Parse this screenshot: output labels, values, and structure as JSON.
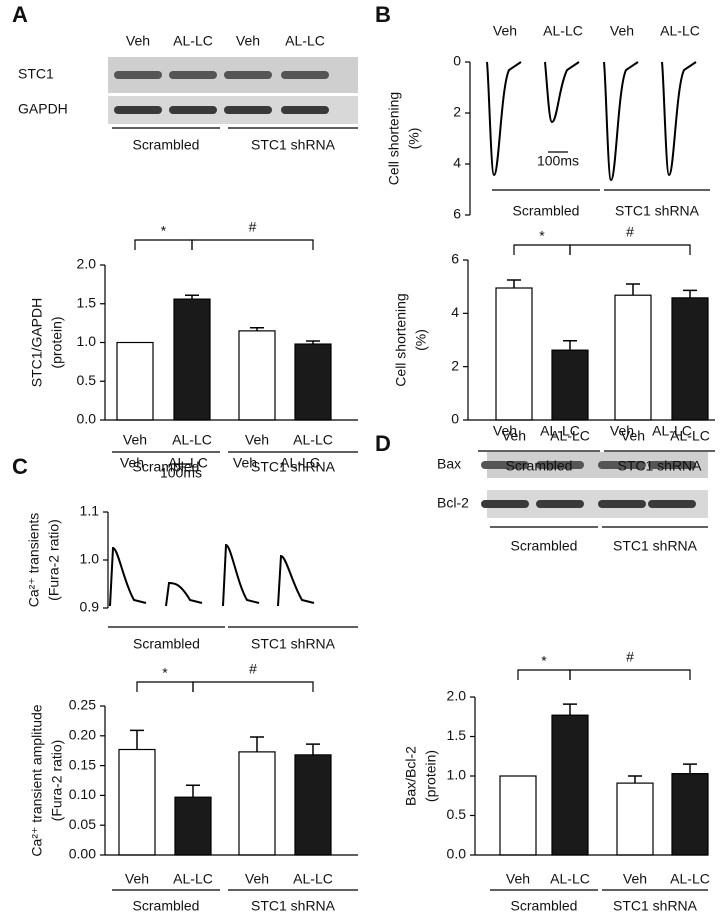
{
  "panels": [
    {
      "letter": "A",
      "lanes": [
        "Veh",
        "AL-LC",
        "Veh",
        "AL-LC"
      ],
      "blots": [
        "STC1",
        "GAPDH"
      ],
      "groups": [
        "Scrambled",
        "STC1 shRNA"
      ]
    },
    {
      "letter": "B",
      "lanes": [
        "Veh",
        "AL-LC",
        "Veh",
        "AL-LC"
      ],
      "trace": {
        "ylabel": [
          "Cell shortening",
          "(%)"
        ],
        "ylim": [
          6,
          0
        ],
        "yticks": [
          0,
          2,
          4,
          6
        ],
        "scale_bar": "100ms"
      },
      "groups": [
        "Scrambled",
        "STC1 shRNA"
      ]
    },
    {
      "letter": "C",
      "lanes": [
        "Veh",
        "AL-LC",
        "Veh",
        "AL-LC"
      ],
      "trace": {
        "ylabel": [
          "Ca²⁺ transients",
          "(Fura-2 ratio)"
        ],
        "ylim": [
          0.9,
          1.1
        ],
        "yticks": [
          0.9,
          {
            "value": 1,
            "label": "1.0"
          },
          1.1
        ],
        "scale_bar": "100ms"
      },
      "groups": [
        "Scrambled",
        "STC1 shRNA"
      ]
    },
    {
      "letter": "D",
      "lanes": [
        "Veh",
        "AL-LC",
        "Veh",
        "AL-LC"
      ],
      "blots": [
        "Bax",
        "Bcl-2"
      ],
      "groups": [
        "Scrambled",
        "STC1 shRNA"
      ]
    }
  ],
  "chart_data": [
    {
      "type": "bar",
      "ylabel": [
        "STC1/GAPDH",
        "(protein)"
      ],
      "categories": [
        "Veh",
        "AL-LC",
        "Veh",
        "AL-LC"
      ],
      "groups": [
        "Scrambled",
        "STC1 shRNA"
      ],
      "values": [
        1.0,
        1.56,
        1.15,
        0.98
      ],
      "errors": [
        null,
        0.05,
        0.04,
        0.04
      ],
      "colors": [
        "#ffffff",
        "#1a1a1a",
        "#ffffff",
        "#1a1a1a"
      ],
      "ylim": [
        0,
        2
      ],
      "yticks": [
        {
          "value": 0,
          "label": "0.0"
        },
        0.5,
        {
          "value": 1,
          "label": "1.0"
        },
        1.5,
        {
          "value": 2,
          "label": "2.0"
        }
      ],
      "annotations": [
        "*",
        "#"
      ]
    },
    {
      "type": "bar",
      "ylabel": [
        "Cell shortening",
        "(%)"
      ],
      "categories": [
        "Veh",
        "AL-LC",
        "Veh",
        "AL-LC"
      ],
      "groups": [
        "Scrambled",
        "STC1 shRNA"
      ],
      "values": [
        4.95,
        2.62,
        4.68,
        4.58
      ],
      "errors": [
        0.3,
        0.35,
        0.42,
        0.28
      ],
      "colors": [
        "#ffffff",
        "#1a1a1a",
        "#ffffff",
        "#1a1a1a"
      ],
      "ylim": [
        0,
        6
      ],
      "yticks": [
        0,
        2,
        4,
        6
      ],
      "annotations": [
        "*",
        "#"
      ]
    },
    {
      "type": "bar",
      "ylabel": [
        "Ca²⁺ transient amplitude",
        "(Fura-2 ratio)"
      ],
      "categories": [
        "Veh",
        "AL-LC",
        "Veh",
        "AL-LC"
      ],
      "groups": [
        "Scrambled",
        "STC1 shRNA"
      ],
      "values": [
        0.177,
        0.097,
        0.173,
        0.168
      ],
      "errors": [
        0.032,
        0.02,
        0.025,
        0.018
      ],
      "colors": [
        "#ffffff",
        "#1a1a1a",
        "#ffffff",
        "#1a1a1a"
      ],
      "ylim": [
        0,
        0.25
      ],
      "yticks": [
        {
          "value": 0,
          "label": "0.00"
        },
        0.05,
        {
          "value": 0.1,
          "label": "0.10"
        },
        0.15,
        {
          "value": 0.2,
          "label": "0.20"
        },
        0.25
      ],
      "annotations": [
        "*",
        "#"
      ]
    },
    {
      "type": "bar",
      "ylabel": [
        "Bax/Bcl-2",
        "(protein)"
      ],
      "categories": [
        "Veh",
        "AL-LC",
        "Veh",
        "AL-LC"
      ],
      "groups": [
        "Scrambled",
        "STC1 shRNA"
      ],
      "values": [
        1.0,
        1.77,
        0.91,
        1.03
      ],
      "errors": [
        null,
        0.14,
        0.09,
        0.12
      ],
      "colors": [
        "#ffffff",
        "#1a1a1a",
        "#ffffff",
        "#1a1a1a"
      ],
      "ylim": [
        0,
        2
      ],
      "yticks": [
        {
          "value": 0,
          "label": "0.0"
        },
        0.5,
        {
          "value": 1,
          "label": "1.0"
        },
        1.5,
        {
          "value": 2,
          "label": "2.0"
        }
      ],
      "annotations": [
        "*",
        "#"
      ]
    }
  ]
}
